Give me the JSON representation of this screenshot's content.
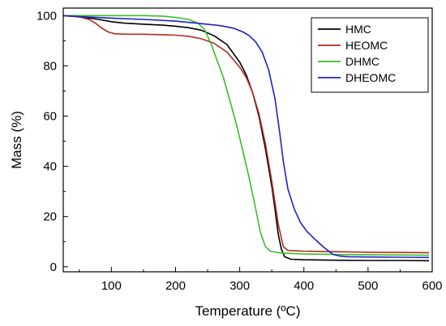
{
  "chart_data": {
    "type": "line",
    "xlabel": "Temperature (ºC)",
    "ylabel": "Mass (%)",
    "xlim": [
      25,
      600
    ],
    "ylim": [
      -2,
      103
    ],
    "xticks": [
      100,
      200,
      300,
      400,
      500,
      600
    ],
    "yticks": [
      0,
      20,
      40,
      60,
      80,
      100
    ],
    "legend_position": "top-right",
    "grid": false,
    "series": [
      {
        "name": "HMC",
        "color": "#000000",
        "points": [
          [
            25,
            100
          ],
          [
            50,
            99.6
          ],
          [
            80,
            98.5
          ],
          [
            100,
            97.6
          ],
          [
            120,
            97
          ],
          [
            150,
            96.6
          ],
          [
            180,
            96.2
          ],
          [
            200,
            95.8
          ],
          [
            220,
            95.2
          ],
          [
            240,
            94.2
          ],
          [
            260,
            92
          ],
          [
            280,
            88.5
          ],
          [
            300,
            81.5
          ],
          [
            310,
            76.5
          ],
          [
            320,
            69.5
          ],
          [
            330,
            60
          ],
          [
            340,
            47
          ],
          [
            350,
            32
          ],
          [
            355,
            23
          ],
          [
            360,
            13
          ],
          [
            365,
            7
          ],
          [
            370,
            4
          ],
          [
            380,
            3
          ],
          [
            400,
            2.8
          ],
          [
            450,
            2.6
          ],
          [
            500,
            2.5
          ],
          [
            550,
            2.5
          ],
          [
            595,
            2.4
          ]
        ]
      },
      {
        "name": "HEOMC",
        "color": "#b22a1e",
        "points": [
          [
            25,
            100
          ],
          [
            50,
            99.5
          ],
          [
            65,
            98.5
          ],
          [
            75,
            97
          ],
          [
            85,
            95
          ],
          [
            95,
            93.5
          ],
          [
            105,
            92.8
          ],
          [
            120,
            92.6
          ],
          [
            150,
            92.6
          ],
          [
            180,
            92.4
          ],
          [
            200,
            92.2
          ],
          [
            220,
            91.8
          ],
          [
            240,
            90.8
          ],
          [
            260,
            89
          ],
          [
            280,
            85.5
          ],
          [
            300,
            79.5
          ],
          [
            310,
            75.5
          ],
          [
            320,
            69.5
          ],
          [
            330,
            61
          ],
          [
            340,
            49
          ],
          [
            350,
            34
          ],
          [
            360,
            17
          ],
          [
            368,
            8
          ],
          [
            375,
            6.5
          ],
          [
            400,
            6.2
          ],
          [
            450,
            6
          ],
          [
            500,
            5.8
          ],
          [
            550,
            5.7
          ],
          [
            595,
            5.6
          ]
        ]
      },
      {
        "name": "DHMC",
        "color": "#35c026",
        "points": [
          [
            25,
            100
          ],
          [
            100,
            100
          ],
          [
            150,
            100
          ],
          [
            180,
            99.8
          ],
          [
            200,
            99.3
          ],
          [
            220,
            98.5
          ],
          [
            235,
            97
          ],
          [
            245,
            94.5
          ],
          [
            255,
            89
          ],
          [
            265,
            82
          ],
          [
            275,
            75
          ],
          [
            285,
            66
          ],
          [
            295,
            56.5
          ],
          [
            305,
            46
          ],
          [
            315,
            35
          ],
          [
            325,
            23
          ],
          [
            332,
            14
          ],
          [
            340,
            8
          ],
          [
            348,
            6.2
          ],
          [
            360,
            5.6
          ],
          [
            380,
            5.3
          ],
          [
            400,
            5.1
          ],
          [
            450,
            4.9
          ],
          [
            500,
            4.8
          ],
          [
            550,
            4.7
          ],
          [
            595,
            4.6
          ]
        ]
      },
      {
        "name": "DHEOMC",
        "color": "#1f22c8",
        "points": [
          [
            25,
            100
          ],
          [
            50,
            99.6
          ],
          [
            100,
            99
          ],
          [
            150,
            98.5
          ],
          [
            200,
            97.8
          ],
          [
            240,
            96.8
          ],
          [
            270,
            96
          ],
          [
            290,
            95
          ],
          [
            305,
            93.5
          ],
          [
            315,
            92
          ],
          [
            325,
            89.5
          ],
          [
            335,
            85.5
          ],
          [
            345,
            78.5
          ],
          [
            355,
            67
          ],
          [
            362,
            54
          ],
          [
            368,
            42
          ],
          [
            375,
            31
          ],
          [
            385,
            23
          ],
          [
            395,
            17.5
          ],
          [
            405,
            14
          ],
          [
            415,
            11.5
          ],
          [
            430,
            8
          ],
          [
            445,
            5
          ],
          [
            455,
            4.3
          ],
          [
            470,
            4
          ],
          [
            500,
            3.9
          ],
          [
            550,
            3.8
          ],
          [
            595,
            3.7
          ]
        ]
      }
    ]
  }
}
